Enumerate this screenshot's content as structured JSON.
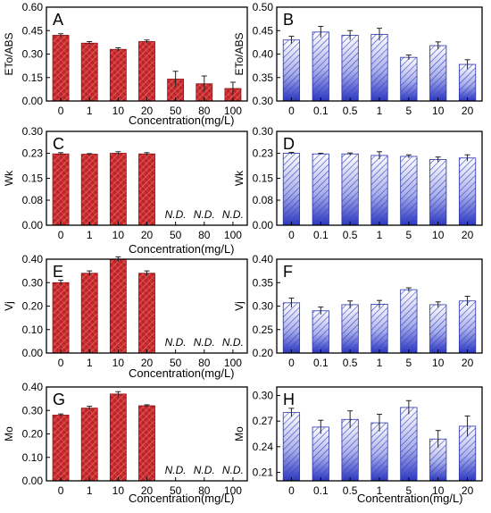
{
  "colors": {
    "red_bar": "#c0282a",
    "blue_bar": "#3a44c8",
    "axis": "#000000"
  },
  "xlabels": {
    "A": "Concentration(mg/L)",
    "C": "Concentration(mg/L)",
    "E": "Concentration(mg/L)",
    "G": "Concentration(mg/L)",
    "H": "Concentration(mg/L)"
  },
  "chart_data": [
    {
      "id": "A",
      "panel_label": "A",
      "type": "bar",
      "color": "red",
      "ylabel": "ETo/ABS",
      "categories": [
        "0",
        "1",
        "10",
        "20",
        "50",
        "80",
        "100"
      ],
      "values": [
        0.42,
        0.37,
        0.33,
        0.38,
        0.14,
        0.11,
        0.08
      ],
      "errors": [
        0.01,
        0.01,
        0.01,
        0.01,
        0.05,
        0.05,
        0.04
      ],
      "ylim": [
        0.0,
        0.6
      ],
      "yticks": [
        "0.00",
        "0.15",
        "0.30",
        "0.45",
        "0.60"
      ],
      "not_detected": []
    },
    {
      "id": "B",
      "panel_label": "B",
      "type": "bar",
      "color": "blue",
      "ylabel": "ETo/ABS",
      "categories": [
        "0",
        "0.1",
        "0.5",
        "1",
        "5",
        "10",
        "20"
      ],
      "values": [
        0.43,
        0.447,
        0.44,
        0.442,
        0.393,
        0.418,
        0.378
      ],
      "errors": [
        0.008,
        0.012,
        0.01,
        0.013,
        0.005,
        0.008,
        0.01
      ],
      "ylim": [
        0.3,
        0.5
      ],
      "yticks": [
        "0.30",
        "0.35",
        "0.40",
        "0.45",
        "0.50"
      ],
      "not_detected": []
    },
    {
      "id": "C",
      "panel_label": "C",
      "type": "bar",
      "color": "red",
      "ylabel": "Wk",
      "categories": [
        "0",
        "1",
        "10",
        "20",
        "50",
        "80",
        "100"
      ],
      "values": [
        0.228,
        0.227,
        0.23,
        0.228,
        null,
        null,
        null
      ],
      "errors": [
        0.004,
        0.002,
        0.005,
        0.004,
        null,
        null,
        null
      ],
      "ylim": [
        0.0,
        0.3
      ],
      "yticks": [
        "0.00",
        "0.08",
        "0.15",
        "0.23",
        "0.30"
      ],
      "not_detected": [
        "N.D.",
        "N.D.",
        "N.D."
      ]
    },
    {
      "id": "D",
      "panel_label": "D",
      "type": "bar",
      "color": "blue",
      "ylabel": "Wk",
      "categories": [
        "0",
        "0.1",
        "0.5",
        "1",
        "5",
        "10",
        "20"
      ],
      "values": [
        0.23,
        0.228,
        0.228,
        0.223,
        0.22,
        0.21,
        0.215
      ],
      "errors": [
        0.003,
        0.002,
        0.003,
        0.012,
        0.005,
        0.008,
        0.01
      ],
      "ylim": [
        0.0,
        0.3
      ],
      "yticks": [
        "0.00",
        "0.08",
        "0.15",
        "0.23",
        "0.30"
      ],
      "not_detected": []
    },
    {
      "id": "E",
      "panel_label": "E",
      "type": "bar",
      "color": "red",
      "ylabel": "Vj",
      "categories": [
        "0",
        "1",
        "10",
        "20",
        "50",
        "80",
        "100"
      ],
      "values": [
        0.3,
        0.34,
        0.4,
        0.34,
        null,
        null,
        null
      ],
      "errors": [
        0.01,
        0.01,
        0.01,
        0.01,
        null,
        null,
        null
      ],
      "ylim": [
        0.0,
        0.4
      ],
      "yticks": [
        "0.00",
        "0.10",
        "0.20",
        "0.30",
        "0.40"
      ],
      "not_detected": [
        "N.D.",
        "N.D.",
        "N.D."
      ]
    },
    {
      "id": "F",
      "panel_label": "F",
      "type": "bar",
      "color": "blue",
      "ylabel": "Vj",
      "categories": [
        "0",
        "0.1",
        "0.5",
        "1",
        "5",
        "10",
        "20"
      ],
      "values": [
        0.307,
        0.29,
        0.303,
        0.304,
        0.335,
        0.303,
        0.311
      ],
      "errors": [
        0.01,
        0.008,
        0.008,
        0.008,
        0.004,
        0.006,
        0.01
      ],
      "ylim": [
        0.2,
        0.4
      ],
      "yticks": [
        "0.20",
        "0.25",
        "0.30",
        "0.35",
        "0.40"
      ],
      "not_detected": []
    },
    {
      "id": "G",
      "panel_label": "G",
      "type": "bar",
      "color": "red",
      "ylabel": "Mo",
      "categories": [
        "0",
        "1",
        "10",
        "20",
        "50",
        "80",
        "100"
      ],
      "values": [
        0.28,
        0.31,
        0.37,
        0.32,
        null,
        null,
        null
      ],
      "errors": [
        0.005,
        0.008,
        0.01,
        0.004,
        null,
        null,
        null
      ],
      "ylim": [
        0.0,
        0.4
      ],
      "yticks": [
        "0.00",
        "0.10",
        "0.20",
        "0.30",
        "0.40"
      ],
      "not_detected": [
        "N.D.",
        "N.D.",
        "N.D."
      ]
    },
    {
      "id": "H",
      "panel_label": "H",
      "type": "bar",
      "color": "blue",
      "ylabel": "Mo",
      "categories": [
        "0",
        "0.1",
        "0.5",
        "1",
        "5",
        "10",
        "20"
      ],
      "values": [
        0.28,
        0.263,
        0.272,
        0.268,
        0.286,
        0.249,
        0.264
      ],
      "errors": [
        0.005,
        0.008,
        0.01,
        0.01,
        0.008,
        0.01,
        0.012
      ],
      "ylim": [
        0.2,
        0.31
      ],
      "yticks": [
        "0.21",
        "0.24",
        "0.27",
        "0.30"
      ],
      "not_detected": []
    }
  ]
}
